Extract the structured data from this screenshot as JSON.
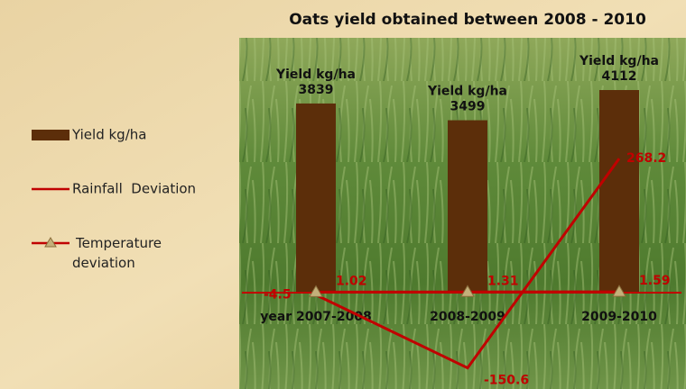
{
  "chart_data": {
    "type": "bar-line",
    "title": "Oats yield obtained between 2008 - 2010",
    "categories": [
      "year 2007-2008",
      "2008-2009",
      "2009-2010"
    ],
    "series": [
      {
        "name": "Yield kg/ha",
        "kind": "bar",
        "color": "#5c2e0a",
        "values": [
          3839,
          3499,
          4112
        ]
      },
      {
        "name": "Rainfall  Deviation",
        "kind": "line",
        "color": "#c00000",
        "values": [
          -4.5,
          -150.6,
          268.2
        ]
      },
      {
        "name": "Temperature deviation",
        "kind": "line-marker",
        "color": "#c00000",
        "marker_color": "#c4b07a",
        "values": [
          1.02,
          1.31,
          1.59
        ]
      }
    ],
    "legend": "left"
  }
}
